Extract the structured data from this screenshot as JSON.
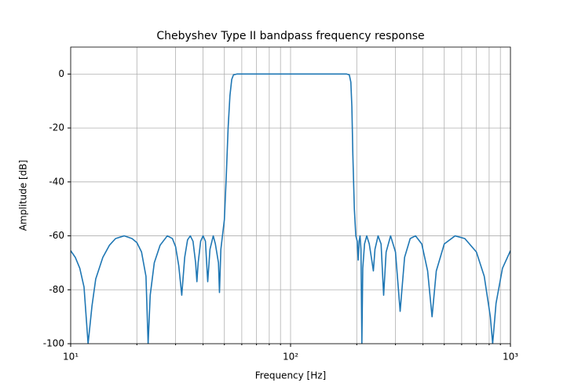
{
  "chart_data": {
    "type": "line",
    "title": "Chebyshev Type II bandpass frequency response",
    "xlabel": "Frequency [Hz]",
    "ylabel": "Amplitude [dB]",
    "xscale": "log",
    "grid": true,
    "xlim": [
      10,
      1000
    ],
    "ylim": [
      -100,
      10
    ],
    "xticks": [
      {
        "value": 10,
        "label": "10¹"
      },
      {
        "value": 100,
        "label": "10²"
      },
      {
        "value": 1000,
        "label": "10³"
      }
    ],
    "xminorticks": [
      20,
      30,
      40,
      50,
      60,
      70,
      80,
      90,
      200,
      300,
      400,
      500,
      600,
      700,
      800,
      900
    ],
    "yticks": [
      -100,
      -80,
      -60,
      -40,
      -20,
      0
    ],
    "x": [
      10,
      10.5,
      11,
      11.5,
      12,
      12.5,
      13,
      14,
      15,
      16,
      17.5,
      19,
      20,
      21,
      22,
      22.5,
      23,
      24,
      25.5,
      27.5,
      29,
      30,
      31,
      32,
      33,
      34,
      35,
      36,
      37,
      37.5,
      38,
      39,
      40,
      41,
      42,
      43,
      44.5,
      45.5,
      47,
      47.5,
      48.2,
      49,
      50,
      51,
      52,
      53,
      54,
      55,
      57,
      100,
      180,
      185,
      188,
      190,
      192,
      195,
      198,
      201,
      203,
      205,
      207,
      209,
      211,
      213,
      217,
      222,
      228,
      235,
      238,
      242,
      250,
      258,
      265,
      272,
      285,
      300,
      315,
      330,
      350,
      370,
      395,
      420,
      440,
      460,
      500,
      560,
      620,
      700,
      760,
      810,
      830,
      860,
      920,
      1000
    ],
    "series": [
      {
        "color": "#1f77b4",
        "values": [
          -65.5,
          -68,
          -72,
          -79,
          -100,
          -86,
          -76,
          -68,
          -63.5,
          -61,
          -60,
          -61,
          -62.5,
          -66,
          -75,
          -100,
          -82,
          -70,
          -63.5,
          -60,
          -61,
          -64,
          -71,
          -82,
          -68,
          -61.5,
          -60,
          -62,
          -70,
          -77,
          -70,
          -62,
          -60,
          -62,
          -77,
          -65,
          -60,
          -63,
          -70,
          -81,
          -65,
          -60,
          -54,
          -38,
          -20,
          -8,
          -2,
          -0.3,
          0,
          0,
          0,
          -0.3,
          -3,
          -12,
          -30,
          -50,
          -60,
          -62,
          -69,
          -62,
          -60,
          -65,
          -100,
          -72,
          -63,
          -60,
          -63,
          -70,
          -73,
          -65,
          -60,
          -63,
          -82,
          -66,
          -60,
          -66,
          -88,
          -68,
          -61,
          -60,
          -63,
          -73,
          -90,
          -73,
          -63,
          -60,
          -61,
          -66,
          -75,
          -90,
          -100,
          -85,
          -72,
          -65.5
        ]
      }
    ]
  }
}
